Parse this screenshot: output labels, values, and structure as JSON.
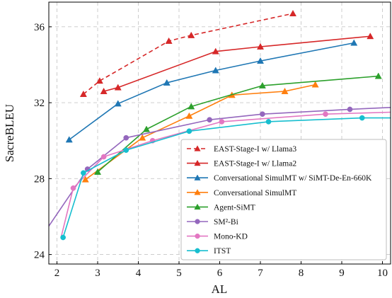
{
  "chart_data": {
    "type": "line",
    "title": "",
    "xlabel": "AL",
    "ylabel": "SacreBLEU",
    "xlim": [
      1.8,
      10.2
    ],
    "ylim": [
      23.5,
      37.3
    ],
    "xticks": [
      2,
      3,
      4,
      5,
      6,
      7,
      8,
      9,
      10
    ],
    "yticks": [
      24,
      28,
      32,
      36
    ],
    "grid": true,
    "legend_position": "bottom-right",
    "series": [
      {
        "name": "EAST-Stage-I w/ Llama3",
        "color": "#d62728",
        "dashed": true,
        "marker": "triangle",
        "points": [
          [
            2.65,
            32.45
          ],
          [
            3.05,
            33.15
          ],
          [
            4.75,
            35.25
          ],
          [
            5.3,
            35.55
          ],
          [
            7.8,
            36.7
          ]
        ],
        "marked": [
          true,
          true,
          true,
          true,
          true
        ]
      },
      {
        "name": "EAST-Stage-I w/ Llama2",
        "color": "#d62728",
        "dashed": false,
        "marker": "triangle",
        "points": [
          [
            3.15,
            32.6
          ],
          [
            3.5,
            32.8
          ],
          [
            5.9,
            34.7
          ],
          [
            7.0,
            34.95
          ],
          [
            9.7,
            35.5
          ]
        ],
        "marked": [
          true,
          true,
          true,
          true,
          true
        ]
      },
      {
        "name": "Conversational SimulMT w/ SiMT-De-En-660K",
        "color": "#1f77b4",
        "dashed": false,
        "marker": "triangle",
        "points": [
          [
            2.3,
            30.05
          ],
          [
            3.5,
            31.95
          ],
          [
            4.7,
            33.05
          ],
          [
            5.9,
            33.7
          ],
          [
            7.0,
            34.2
          ],
          [
            9.3,
            35.15
          ]
        ],
        "marked": [
          true,
          true,
          true,
          true,
          true,
          true
        ]
      },
      {
        "name": "Conversational SimulMT",
        "color": "#ff7f0e",
        "dashed": false,
        "marker": "triangle",
        "points": [
          [
            2.7,
            27.95
          ],
          [
            4.1,
            30.15
          ],
          [
            5.25,
            31.3
          ],
          [
            6.3,
            32.4
          ],
          [
            7.6,
            32.6
          ],
          [
            8.35,
            32.95
          ]
        ],
        "marked": [
          true,
          true,
          true,
          true,
          true,
          true
        ]
      },
      {
        "name": "Agent-SiMT",
        "color": "#2ca02c",
        "dashed": false,
        "marker": "triangle",
        "points": [
          [
            3.0,
            28.35
          ],
          [
            4.2,
            30.6
          ],
          [
            5.3,
            31.8
          ],
          [
            7.05,
            32.9
          ],
          [
            9.9,
            33.4
          ]
        ],
        "marked": [
          true,
          true,
          true,
          true,
          true
        ]
      },
      {
        "name": "SM²-Bi",
        "color": "#9467bd",
        "dashed": false,
        "marker": "circle",
        "points": [
          [
            1.8,
            25.5
          ],
          [
            2.75,
            28.5
          ],
          [
            3.7,
            30.15
          ],
          [
            5.75,
            31.1
          ],
          [
            7.05,
            31.4
          ],
          [
            9.2,
            31.65
          ],
          [
            10.2,
            31.75
          ]
        ],
        "marked": [
          false,
          true,
          true,
          true,
          true,
          true,
          false
        ]
      },
      {
        "name": "Mono-KD",
        "color": "#e377c2",
        "dashed": false,
        "marker": "circle",
        "points": [
          [
            2.1,
            24.9
          ],
          [
            2.4,
            27.5
          ],
          [
            3.15,
            29.15
          ],
          [
            4.35,
            30.0
          ],
          [
            6.05,
            31.0
          ],
          [
            8.6,
            31.4
          ],
          [
            10.2,
            31.5
          ]
        ],
        "marked": [
          false,
          true,
          true,
          true,
          true,
          true,
          false
        ]
      },
      {
        "name": "ITST",
        "color": "#17becf",
        "dashed": false,
        "marker": "circle",
        "points": [
          [
            2.15,
            24.9
          ],
          [
            2.65,
            28.3
          ],
          [
            3.7,
            29.5
          ],
          [
            5.25,
            30.5
          ],
          [
            7.2,
            31.0
          ],
          [
            9.5,
            31.2
          ],
          [
            10.2,
            31.2
          ]
        ],
        "marked": [
          true,
          true,
          true,
          true,
          true,
          true,
          false
        ]
      }
    ]
  }
}
